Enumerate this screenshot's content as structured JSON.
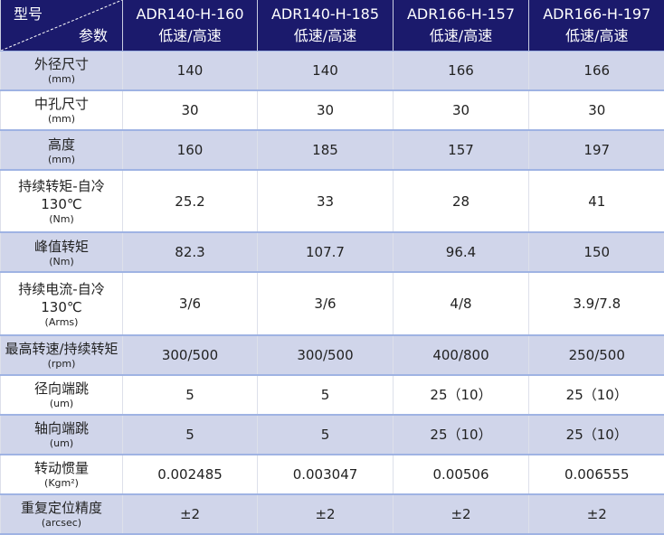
{
  "header": {
    "corner_top": "型号",
    "corner_bottom": "参数",
    "models": [
      {
        "name": "ADR140-H-160",
        "sub": "低速/高速"
      },
      {
        "name": "ADR140-H-185",
        "sub": "低速/高速"
      },
      {
        "name": "ADR166-H-157",
        "sub": "低速/高速"
      },
      {
        "name": "ADR166-H-197",
        "sub": "低速/高速"
      }
    ]
  },
  "rows": [
    {
      "param": "外径尺寸",
      "unit": "(mm)",
      "values": [
        "140",
        "140",
        "166",
        "166"
      ]
    },
    {
      "param": "中孔尺寸",
      "unit": "(mm)",
      "values": [
        "30",
        "30",
        "30",
        "30"
      ]
    },
    {
      "param": "高度",
      "unit": "(mm)",
      "values": [
        "160",
        "185",
        "157",
        "197"
      ]
    },
    {
      "param": "持续转矩-自冷 130℃",
      "unit": "(Nm)",
      "values": [
        "25.2",
        "33",
        "28",
        "41"
      ]
    },
    {
      "param": "峰值转矩",
      "unit": "(Nm)",
      "values": [
        "82.3",
        "107.7",
        "96.4",
        "150"
      ]
    },
    {
      "param": "持续电流-自冷 130℃",
      "unit": "(Arms)",
      "values": [
        "3/6",
        "3/6",
        "4/8",
        "3.9/7.8"
      ]
    },
    {
      "param": "最高转速/持续转矩",
      "unit": "(rpm)",
      "values": [
        "300/500",
        "300/500",
        "400/800",
        "250/500"
      ]
    },
    {
      "param": "径向端跳",
      "unit": "(um)",
      "values": [
        "5",
        "5",
        "25（10）",
        "25（10）"
      ]
    },
    {
      "param": "轴向端跳",
      "unit": "(um)",
      "values": [
        "5",
        "5",
        "25（10）",
        "25（10）"
      ]
    },
    {
      "param": "转动惯量",
      "unit": "(Kgm²)",
      "values": [
        "0.002485",
        "0.003047",
        "0.00506",
        "0.006555"
      ]
    },
    {
      "param": "重复定位精度",
      "unit": "(arcsec)",
      "values": [
        "±2",
        "±2",
        "±2",
        "±2"
      ]
    }
  ]
}
